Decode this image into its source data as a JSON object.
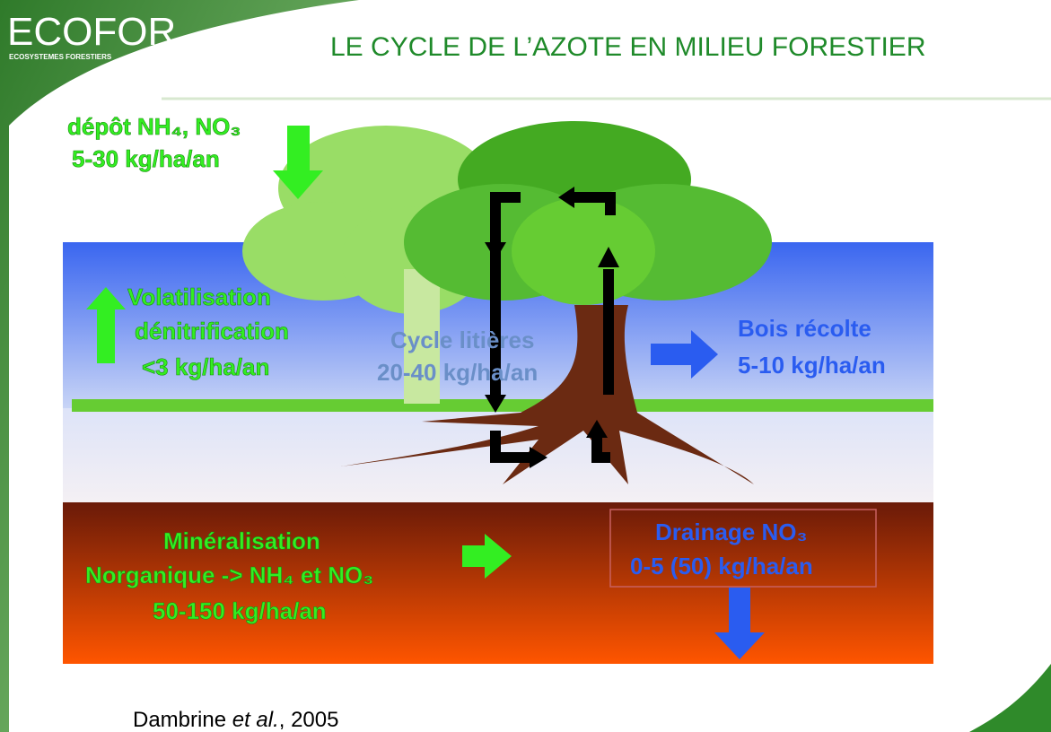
{
  "header": {
    "logo": "ECOFOR",
    "logo_subtitle": "ECOSYSTEMES FORESTIERS",
    "title": "LE CYCLE DE L’AZOTE EN MILIEU FORESTIER"
  },
  "fluxes": {
    "deposition": {
      "label": "dépôt NH₄, NO₃",
      "amount": "5-30 kg/ha/an"
    },
    "volatilisation": {
      "label1": "Volatilisation",
      "label2": "dénitrification",
      "amount": "<3 kg/ha/an"
    },
    "litter": {
      "label": "Cycle litières",
      "amount": "20-40 kg/ha/an"
    },
    "harvest": {
      "label": "Bois récolte",
      "amount": "5-10 kg/ha/an"
    },
    "mineralisation": {
      "label1": "Minéralisation",
      "label2": "Norganique -> NH₄ et NO₃",
      "amount": "50-150 kg/ha/an"
    },
    "drainage": {
      "label": "Drainage NO₃",
      "amount": "0-5 (50) kg/ha/an"
    }
  },
  "citation": {
    "author": "Dambrine",
    "etal": "et al.",
    "year": ", 2005"
  }
}
